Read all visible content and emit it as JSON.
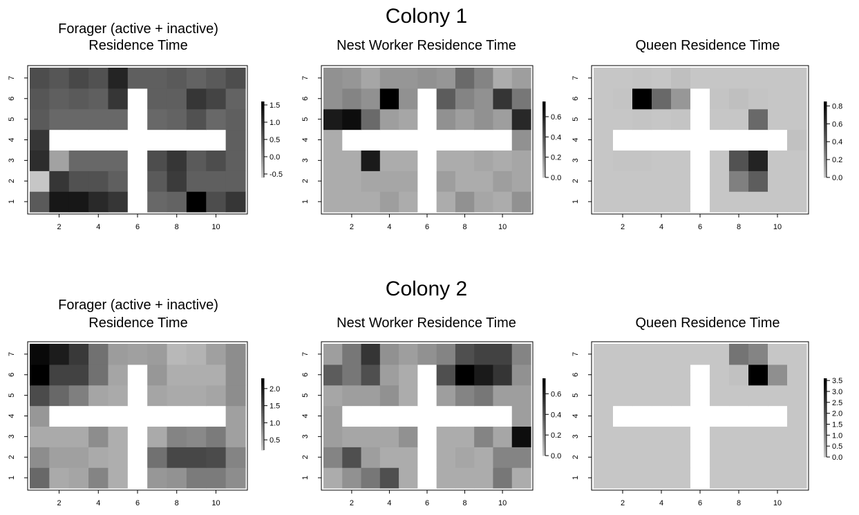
{
  "colony_titles": [
    "Colony 1",
    "Colony 2"
  ],
  "chart_data": [
    {
      "type": "heatmap",
      "colony": "Colony 1",
      "title": "Forager (active + inactive)\nResidence Time",
      "x": [
        1,
        2,
        3,
        4,
        5,
        6,
        7,
        8,
        9,
        10,
        11
      ],
      "y": [
        1,
        2,
        3,
        4,
        5,
        6,
        7
      ],
      "x_ticks": [
        2,
        4,
        6,
        8,
        10
      ],
      "y_ticks": [
        1,
        2,
        3,
        4,
        5,
        6,
        7
      ],
      "colorbar": {
        "range": [
          -0.6,
          1.6
        ],
        "ticks": [
          1.5,
          1.0,
          0.5,
          0.0,
          -0.5
        ],
        "tick_labels": [
          "1.5",
          "1.0",
          "0.5",
          "0.0",
          "-0.5"
        ]
      },
      "grid": false,
      "values": [
        [
          0.6,
          1.35,
          1.35,
          1.15,
          1.0,
          null,
          0.45,
          0.5,
          1.6,
          0.75,
          1.0
        ],
        [
          -0.6,
          1.0,
          0.7,
          0.7,
          0.55,
          null,
          0.6,
          0.95,
          0.55,
          0.55,
          0.55
        ],
        [
          1.1,
          -0.2,
          0.45,
          0.45,
          0.45,
          null,
          0.75,
          1.0,
          0.6,
          0.75,
          0.55
        ],
        [
          1.0,
          null,
          null,
          null,
          null,
          null,
          null,
          null,
          null,
          null,
          0.55
        ],
        [
          0.6,
          0.45,
          0.45,
          0.45,
          0.45,
          null,
          0.45,
          0.5,
          0.7,
          0.45,
          0.55
        ],
        [
          0.65,
          0.55,
          0.6,
          0.55,
          1.0,
          null,
          0.55,
          0.55,
          1.0,
          0.85,
          0.5
        ],
        [
          0.75,
          0.65,
          0.8,
          0.7,
          1.2,
          0.55,
          0.55,
          0.6,
          0.5,
          0.6,
          0.75
        ]
      ]
    },
    {
      "type": "heatmap",
      "colony": "Colony 1",
      "title": "Nest Worker Residence Time",
      "x": [
        1,
        2,
        3,
        4,
        5,
        6,
        7,
        8,
        9,
        10,
        11
      ],
      "y": [
        1,
        2,
        3,
        4,
        5,
        6,
        7
      ],
      "x_ticks": [
        2,
        4,
        6,
        8,
        10
      ],
      "y_ticks": [
        1,
        2,
        3,
        4,
        5,
        6,
        7
      ],
      "colorbar": {
        "range": [
          0.0,
          0.75
        ],
        "ticks": [
          0.6,
          0.4,
          0.2,
          0.0
        ],
        "tick_labels": [
          "0.6",
          "0.4",
          "0.2",
          "0.0"
        ]
      },
      "grid": false,
      "values": [
        [
          0.1,
          0.1,
          0.1,
          0.15,
          0.1,
          null,
          0.1,
          0.2,
          0.12,
          0.1,
          0.2
        ],
        [
          0.1,
          0.1,
          0.12,
          0.12,
          0.12,
          null,
          0.15,
          0.1,
          0.1,
          0.15,
          0.12
        ],
        [
          0.1,
          0.1,
          0.65,
          0.1,
          0.1,
          null,
          0.1,
          0.1,
          0.12,
          0.1,
          0.12
        ],
        [
          0.1,
          null,
          null,
          null,
          null,
          null,
          null,
          null,
          null,
          null,
          0.2
        ],
        [
          0.65,
          0.7,
          0.35,
          0.15,
          0.12,
          null,
          0.2,
          0.15,
          0.2,
          0.15,
          0.6
        ],
        [
          0.2,
          0.25,
          0.2,
          0.75,
          0.2,
          null,
          0.4,
          0.25,
          0.2,
          0.55,
          0.3
        ],
        [
          0.2,
          0.18,
          0.12,
          0.18,
          0.18,
          0.2,
          0.18,
          0.35,
          0.25,
          0.1,
          0.15
        ]
      ]
    },
    {
      "type": "heatmap",
      "colony": "Colony 1",
      "title": "Queen Residence Time",
      "x": [
        1,
        2,
        3,
        4,
        5,
        6,
        7,
        8,
        9,
        10,
        11
      ],
      "y": [
        1,
        2,
        3,
        4,
        5,
        6,
        7
      ],
      "x_ticks": [
        2,
        4,
        6,
        8,
        10
      ],
      "y_ticks": [
        1,
        2,
        3,
        4,
        5,
        6,
        7
      ],
      "colorbar": {
        "range": [
          0.0,
          0.85
        ],
        "ticks": [
          0.8,
          0.6,
          0.4,
          0.2,
          0.0
        ],
        "tick_labels": [
          "0.8",
          "0.6",
          "0.4",
          "0.2",
          "0.0"
        ]
      },
      "grid": false,
      "values": [
        [
          0.0,
          0.0,
          0.0,
          0.0,
          0.0,
          null,
          0.0,
          0.0,
          0.0,
          0.0,
          0.0
        ],
        [
          0.0,
          0.0,
          0.0,
          0.0,
          0.0,
          null,
          0.0,
          0.3,
          0.45,
          0.0,
          0.0
        ],
        [
          0.0,
          0.01,
          0.01,
          0.0,
          0.0,
          null,
          0.0,
          0.5,
          0.7,
          0.0,
          0.0
        ],
        [
          0.0,
          null,
          null,
          null,
          null,
          null,
          null,
          null,
          null,
          null,
          0.02
        ],
        [
          0.0,
          0.0,
          0.01,
          0.0,
          0.01,
          null,
          0.0,
          0.0,
          0.4,
          0.0,
          0.0
        ],
        [
          0.0,
          0.01,
          0.85,
          0.4,
          0.2,
          null,
          0.01,
          0.03,
          0.01,
          0.0,
          0.0
        ],
        [
          0.0,
          0.0,
          0.01,
          0.0,
          0.03,
          0.0,
          0.0,
          0.0,
          0.0,
          0.0,
          0.0
        ]
      ]
    },
    {
      "type": "heatmap",
      "colony": "Colony 2",
      "title": "Forager (active + inactive)\nResidence Time",
      "x": [
        1,
        2,
        3,
        4,
        5,
        6,
        7,
        8,
        9,
        10,
        11
      ],
      "y": [
        1,
        2,
        3,
        4,
        5,
        6,
        7
      ],
      "x_ticks": [
        2,
        4,
        6,
        8,
        10
      ],
      "y_ticks": [
        1,
        2,
        3,
        4,
        5,
        6,
        7
      ],
      "colorbar": {
        "range": [
          0.2,
          2.3
        ],
        "ticks": [
          2.0,
          1.5,
          1.0,
          0.5
        ],
        "tick_labels": [
          "2.0",
          "1.5",
          "1.0",
          "0.5"
        ]
      },
      "grid": false,
      "values": [
        [
          1.2,
          0.5,
          0.55,
          0.9,
          0.45,
          null,
          0.7,
          0.75,
          1.0,
          1.0,
          0.8
        ],
        [
          0.8,
          0.6,
          0.6,
          0.5,
          0.45,
          null,
          1.1,
          1.55,
          1.55,
          1.5,
          0.9
        ],
        [
          0.5,
          0.5,
          0.5,
          0.8,
          0.45,
          null,
          0.5,
          0.9,
          0.85,
          1.0,
          0.6
        ],
        [
          0.7,
          null,
          null,
          null,
          null,
          null,
          null,
          null,
          null,
          null,
          0.6
        ],
        [
          1.5,
          1.2,
          0.95,
          0.55,
          0.5,
          null,
          0.55,
          0.5,
          0.5,
          0.55,
          0.8
        ],
        [
          2.3,
          1.6,
          1.6,
          1.1,
          0.55,
          null,
          0.7,
          0.45,
          0.45,
          0.45,
          0.8
        ],
        [
          2.2,
          2.0,
          1.7,
          1.1,
          0.65,
          0.6,
          0.65,
          0.35,
          0.4,
          0.6,
          0.8
        ]
      ]
    },
    {
      "type": "heatmap",
      "colony": "Colony 2",
      "title": "Nest Worker Residence Time",
      "x": [
        1,
        2,
        3,
        4,
        5,
        6,
        7,
        8,
        9,
        10,
        11
      ],
      "y": [
        1,
        2,
        3,
        4,
        5,
        6,
        7
      ],
      "x_ticks": [
        2,
        4,
        6,
        8,
        10
      ],
      "y_ticks": [
        1,
        2,
        3,
        4,
        5,
        6,
        7
      ],
      "colorbar": {
        "range": [
          0.0,
          0.75
        ],
        "ticks": [
          0.6,
          0.4,
          0.2,
          0.0
        ],
        "tick_labels": [
          "0.6",
          "0.4",
          "0.2",
          "0.0"
        ]
      },
      "grid": false,
      "values": [
        [
          0.1,
          0.2,
          0.3,
          0.45,
          0.1,
          null,
          0.1,
          0.1,
          0.1,
          0.3,
          0.1
        ],
        [
          0.25,
          0.45,
          0.15,
          0.1,
          0.1,
          null,
          0.1,
          0.12,
          0.1,
          0.25,
          0.25
        ],
        [
          0.15,
          0.12,
          0.12,
          0.12,
          0.2,
          null,
          0.1,
          0.1,
          0.25,
          0.12,
          0.7
        ],
        [
          0.15,
          null,
          null,
          null,
          null,
          null,
          null,
          null,
          null,
          null,
          0.15
        ],
        [
          0.12,
          0.15,
          0.15,
          0.2,
          0.1,
          null,
          0.15,
          0.25,
          0.3,
          0.15,
          0.15
        ],
        [
          0.4,
          0.3,
          0.45,
          0.15,
          0.1,
          null,
          0.45,
          0.75,
          0.65,
          0.55,
          0.2
        ],
        [
          0.15,
          0.3,
          0.55,
          0.2,
          0.15,
          0.2,
          0.25,
          0.45,
          0.5,
          0.5,
          0.25
        ]
      ]
    },
    {
      "type": "heatmap",
      "colony": "Colony 2",
      "title": "Queen Residence Time",
      "x": [
        1,
        2,
        3,
        4,
        5,
        6,
        7,
        8,
        9,
        10,
        11
      ],
      "y": [
        1,
        2,
        3,
        4,
        5,
        6,
        7
      ],
      "x_ticks": [
        2,
        4,
        6,
        8,
        10
      ],
      "y_ticks": [
        1,
        2,
        3,
        4,
        5,
        6,
        7
      ],
      "colorbar": {
        "range": [
          0.0,
          3.6
        ],
        "ticks": [
          3.5,
          3.0,
          2.5,
          2.0,
          1.5,
          1.0,
          0.5,
          0.0
        ],
        "tick_labels": [
          "3.5",
          "3.0",
          "2.5",
          "2.0",
          "1.5",
          "1.0",
          "0.5",
          "0.0"
        ]
      },
      "grid": false,
      "values": [
        [
          0.0,
          0.0,
          0.0,
          0.0,
          0.0,
          null,
          0.0,
          0.0,
          0.0,
          0.0,
          0.0
        ],
        [
          0.0,
          0.0,
          0.0,
          0.0,
          0.0,
          null,
          0.0,
          0.0,
          0.0,
          0.0,
          0.0
        ],
        [
          0.0,
          0.0,
          0.0,
          0.0,
          0.0,
          null,
          0.0,
          0.0,
          0.0,
          0.0,
          0.0
        ],
        [
          0.0,
          null,
          null,
          null,
          null,
          null,
          null,
          null,
          null,
          null,
          0.0
        ],
        [
          0.0,
          0.0,
          0.0,
          0.0,
          0.0,
          null,
          0.0,
          0.0,
          0.0,
          0.0,
          0.0
        ],
        [
          0.0,
          0.0,
          0.0,
          0.0,
          0.0,
          null,
          0.0,
          0.1,
          3.6,
          1.0,
          0.0
        ],
        [
          0.0,
          0.0,
          0.0,
          0.0,
          0.0,
          0.0,
          0.0,
          1.5,
          1.2,
          0.0,
          0.0
        ]
      ]
    }
  ]
}
